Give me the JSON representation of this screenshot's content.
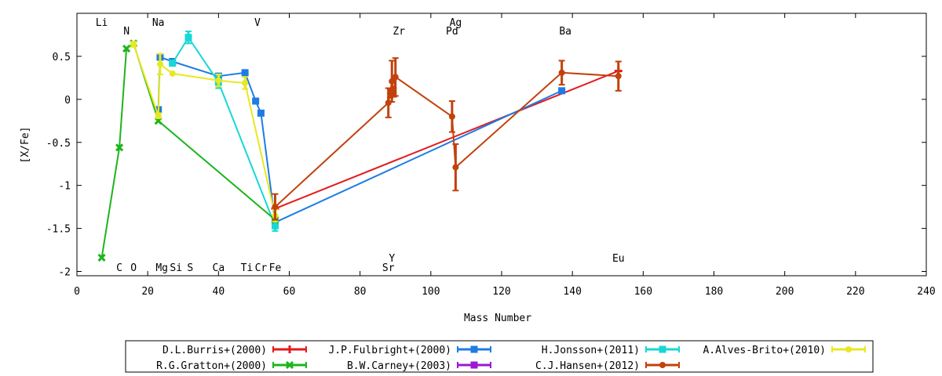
{
  "chart_data": {
    "type": "line",
    "xlabel": "Mass Number",
    "ylabel": "[X/Fe]",
    "xlim": [
      0,
      240
    ],
    "ylim": [
      -2.05,
      1.0
    ],
    "xticks": [
      0,
      20,
      40,
      60,
      80,
      100,
      120,
      140,
      160,
      180,
      200,
      220,
      240
    ],
    "yticks": [
      {
        "v": 0.5,
        "label": "0.5"
      },
      {
        "v": 0,
        "label": "0"
      },
      {
        "v": -0.5,
        "label": "-0.5"
      },
      {
        "v": -1,
        "label": "-1"
      },
      {
        "v": -1.5,
        "label": "-1.5"
      },
      {
        "v": -2,
        "label": "-2"
      }
    ],
    "grid": false,
    "legend_position": "bottom",
    "element_labels_top": [
      {
        "x": 7,
        "y": 0.9,
        "label": "Li"
      },
      {
        "x": 14,
        "y": 0.8,
        "label": "N"
      },
      {
        "x": 23,
        "y": 0.9,
        "label": "Na"
      },
      {
        "x": 51,
        "y": 0.9,
        "label": "V"
      },
      {
        "x": 91,
        "y": 0.8,
        "label": "Zr"
      },
      {
        "x": 107,
        "y": 0.9,
        "label": "Ag"
      },
      {
        "x": 106,
        "y": 0.8,
        "label": "Pd"
      },
      {
        "x": 138,
        "y": 0.8,
        "label": "Ba"
      }
    ],
    "element_labels_bottom": [
      {
        "x": 12,
        "y": -1.95,
        "label": "C"
      },
      {
        "x": 16,
        "y": -1.95,
        "label": "O"
      },
      {
        "x": 24,
        "y": -1.95,
        "label": "Mg"
      },
      {
        "x": 28,
        "y": -1.95,
        "label": "Si"
      },
      {
        "x": 32,
        "y": -1.95,
        "label": "S"
      },
      {
        "x": 40,
        "y": -1.95,
        "label": "Ca"
      },
      {
        "x": 48,
        "y": -1.95,
        "label": "Ti"
      },
      {
        "x": 52,
        "y": -1.95,
        "label": "Cr"
      },
      {
        "x": 56,
        "y": -1.95,
        "label": "Fe"
      },
      {
        "x": 89,
        "y": -1.84,
        "label": "Y"
      },
      {
        "x": 88,
        "y": -1.95,
        "label": "Sr"
      },
      {
        "x": 153,
        "y": -1.84,
        "label": "Eu"
      }
    ],
    "series": [
      {
        "name": "D.L.Burris+(2000)",
        "color": "#e41a1c",
        "marker": "plus",
        "points": [
          {
            "x": 56,
            "y": -1.27,
            "err": 0
          },
          {
            "x": 153,
            "y": 0.33,
            "err": 0
          }
        ]
      },
      {
        "name": "J.P.Fulbright+(2000)",
        "color": "#1e7ce3",
        "marker": "square",
        "points": [
          {
            "x": 23,
            "y": -0.12,
            "err": 0.03
          },
          {
            "x": 23.5,
            "y": 0.49,
            "err": 0.03
          },
          {
            "x": 27,
            "y": 0.44,
            "err": 0
          },
          {
            "x": 40,
            "y": 0.27,
            "err": 0
          },
          {
            "x": 47.5,
            "y": 0.31,
            "err": 0
          },
          {
            "x": 50.5,
            "y": -0.02,
            "err": 0
          },
          {
            "x": 52,
            "y": -0.16,
            "err": 0
          },
          {
            "x": 56,
            "y": -1.43,
            "err": 0
          },
          {
            "x": 137,
            "y": 0.1,
            "err": 0
          }
        ]
      },
      {
        "name": "H.Jonsson+(2011)",
        "color": "#19d7d7",
        "marker": "square",
        "points": [
          {
            "x": 27,
            "y": 0.42,
            "err": 0
          },
          {
            "x": 31.5,
            "y": 0.72,
            "err": 0.07
          },
          {
            "x": 40,
            "y": 0.2,
            "err": 0.07
          },
          {
            "x": 56,
            "y": -1.47,
            "err": 0.06
          }
        ]
      },
      {
        "name": "A.Alves-Brito+(2010)",
        "color": "#e8e820",
        "marker": "circle",
        "points": [
          {
            "x": 16,
            "y": 0.64,
            "err": 0.03
          },
          {
            "x": 23,
            "y": -0.19,
            "err": 0.03
          },
          {
            "x": 23.5,
            "y": 0.41,
            "err": 0.12
          },
          {
            "x": 27,
            "y": 0.3,
            "err": 0
          },
          {
            "x": 40,
            "y": 0.22,
            "err": 0.07
          },
          {
            "x": 47.5,
            "y": 0.19,
            "err": 0.07
          },
          {
            "x": 56,
            "y": -1.35,
            "err": 0.07
          }
        ]
      },
      {
        "name": "R.G.Gratton+(2000)",
        "color": "#1cb51c",
        "marker": "x",
        "points": [
          {
            "x": 7,
            "y": -1.84,
            "err": 0
          },
          {
            "x": 12,
            "y": -0.56,
            "err": 0
          },
          {
            "x": 14,
            "y": 0.59,
            "err": 0
          },
          {
            "x": 16,
            "y": 0.65,
            "err": 0
          },
          {
            "x": 23,
            "y": -0.25,
            "err": 0
          },
          {
            "x": 56,
            "y": -1.4,
            "err": 0
          }
        ]
      },
      {
        "name": "B.W.Carney+(2003)",
        "color": "#9b19d4",
        "marker": "square",
        "points": []
      },
      {
        "name": "C.J.Hansen+(2012)",
        "color": "#c2410c",
        "marker": "circle",
        "points": [
          {
            "x": 56,
            "y": -1.25,
            "err": 0.15
          },
          {
            "x": 88,
            "y": -0.04,
            "err": 0.17
          },
          {
            "x": 88.5,
            "y": 0.07,
            "err": 0.05
          },
          {
            "x": 89,
            "y": 0.21,
            "err": 0.24
          },
          {
            "x": 89.5,
            "y": 0.08,
            "err": 0.05
          },
          {
            "x": 90,
            "y": 0.26,
            "err": 0.22
          },
          {
            "x": 106,
            "y": -0.2,
            "err": 0.18
          },
          {
            "x": 107,
            "y": -0.79,
            "err": 0.27
          },
          {
            "x": 137,
            "y": 0.31,
            "err": 0.14
          },
          {
            "x": 153,
            "y": 0.27,
            "err": 0.17
          }
        ]
      }
    ],
    "legend": [
      [
        "D.L.Burris+(2000)",
        "J.P.Fulbright+(2000)",
        "H.Jonsson+(2011)",
        "A.Alves-Brito+(2010)"
      ],
      [
        "R.G.Gratton+(2000)",
        "B.W.Carney+(2003)",
        "C.J.Hansen+(2012)"
      ]
    ]
  }
}
